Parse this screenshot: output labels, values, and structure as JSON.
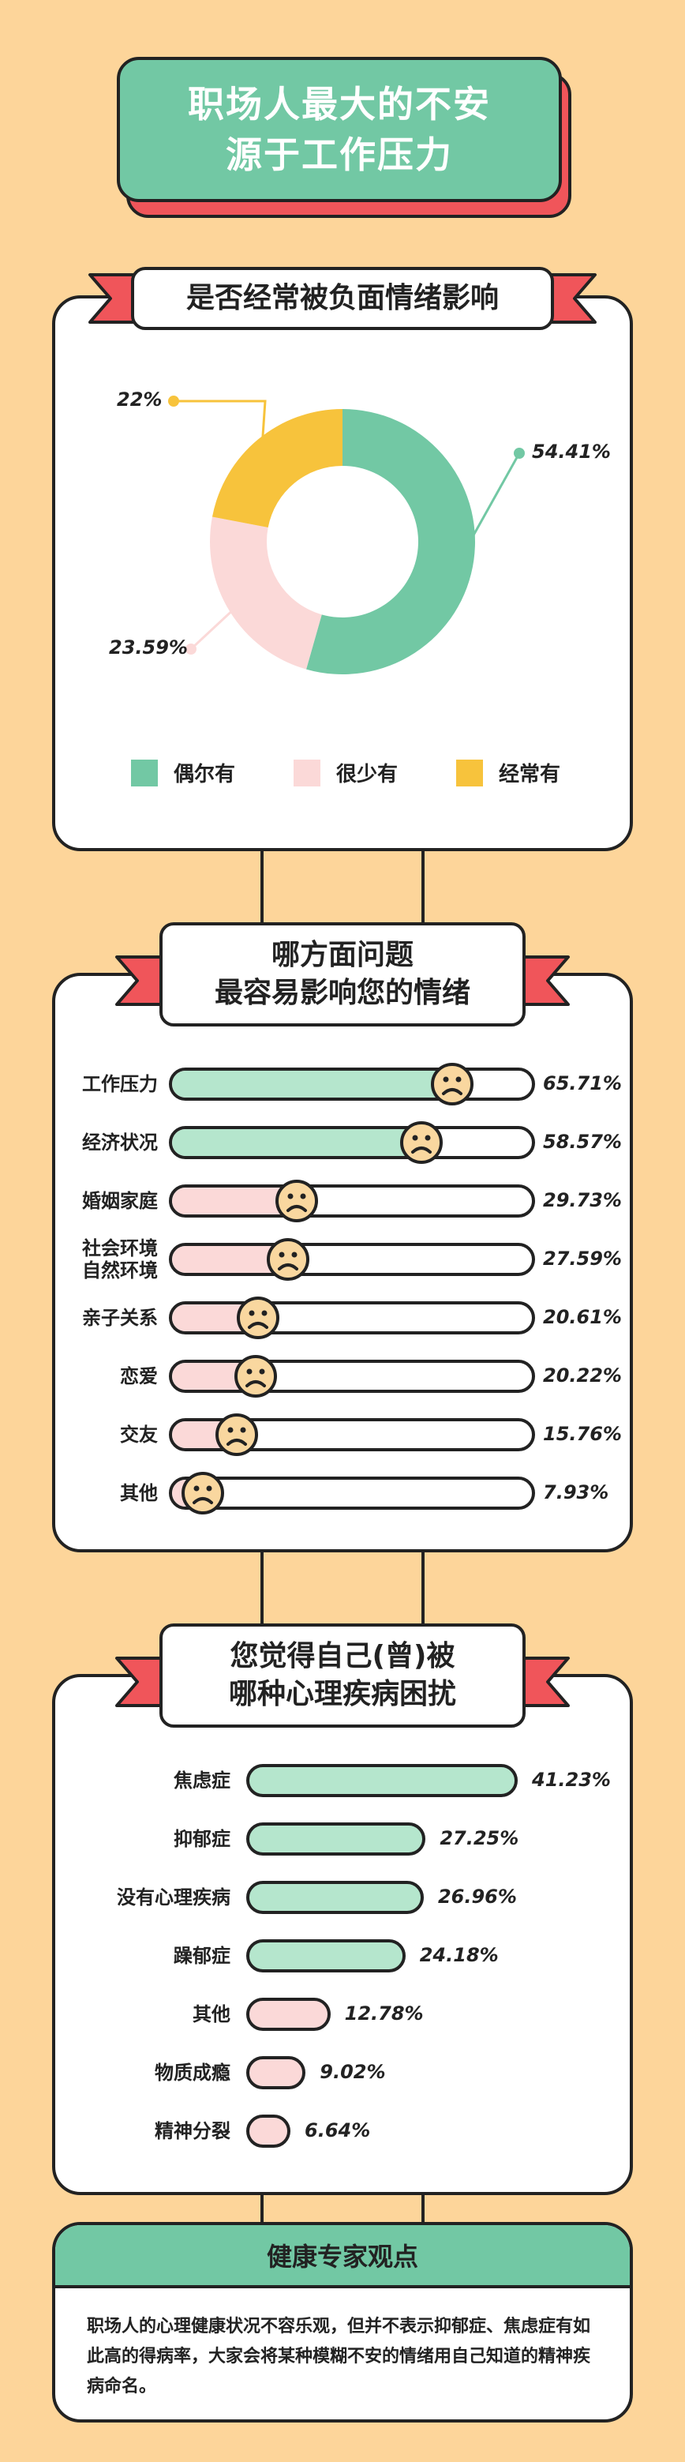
{
  "title": {
    "line1": "职场人最大的不安",
    "line2": "源于工作压力"
  },
  "colors": {
    "green": "#72c8a4",
    "pink": "#fbd9d8",
    "yellow": "#f7c33c",
    "light_green": "#b5e6cd",
    "red": "#f0555a",
    "bg": "#fdd59a",
    "face": "#f9d79f"
  },
  "section1": {
    "title": "是否经常被负面情绪影响"
  },
  "section2": {
    "title_line1": "哪方面问题",
    "title_line2": "最容易影响您的情绪"
  },
  "section3": {
    "title_line1": "您觉得自己(曾)被",
    "title_line2": "哪种心理疾病困扰"
  },
  "expert": {
    "title": "健康专家观点",
    "text": "职场人的心理健康状况不容乐观，但并不表示抑郁症、焦虑症有如此高的得病率，大家会将某种模糊不安的情绪用自己知道的精神疾病命名。"
  },
  "chart_data": [
    {
      "type": "pie",
      "title": "是否经常被负面情绪影响",
      "categories": [
        "偶尔有",
        "很少有",
        "经常有"
      ],
      "values": [
        54.41,
        23.59,
        22
      ],
      "labels": [
        "54.41%",
        "23.59%",
        "22%"
      ],
      "colors": [
        "#72c8a4",
        "#fbd9d8",
        "#f7c33c"
      ],
      "legend": "bottom"
    },
    {
      "type": "bar",
      "title": "哪方面问题最容易影响您的情绪",
      "categories": [
        "工作压力",
        "经济状况",
        "婚姻家庭",
        "社会环境自然环境",
        "亲子关系",
        "恋爱",
        "交友",
        "其他"
      ],
      "category_lines": [
        [
          "工作压力"
        ],
        [
          "经济状况"
        ],
        [
          "婚姻家庭"
        ],
        [
          "社会环境",
          "自然环境"
        ],
        [
          "亲子关系"
        ],
        [
          "恋爱"
        ],
        [
          "交友"
        ],
        [
          "其他"
        ]
      ],
      "values": [
        65.71,
        58.57,
        29.73,
        27.59,
        20.61,
        20.22,
        15.76,
        7.93
      ],
      "labels": [
        "65.71%",
        "58.57%",
        "29.73%",
        "27.59%",
        "20.61%",
        "20.22%",
        "15.76%",
        "7.93%"
      ],
      "orientation": "horizontal",
      "xlim": [
        0,
        85
      ]
    },
    {
      "type": "bar",
      "title": "您觉得自己(曾)被哪种心理疾病困扰",
      "categories": [
        "焦虑症",
        "抑郁症",
        "没有心理疾病",
        "躁郁症",
        "其他",
        "物质成瘾",
        "精神分裂"
      ],
      "values": [
        41.23,
        27.25,
        26.96,
        24.18,
        12.78,
        9.02,
        6.64
      ],
      "labels": [
        "41.23%",
        "27.25%",
        "26.96%",
        "24.18%",
        "12.78%",
        "9.02%",
        "6.64%"
      ],
      "orientation": "horizontal",
      "xlim": [
        0,
        41.23
      ]
    }
  ]
}
